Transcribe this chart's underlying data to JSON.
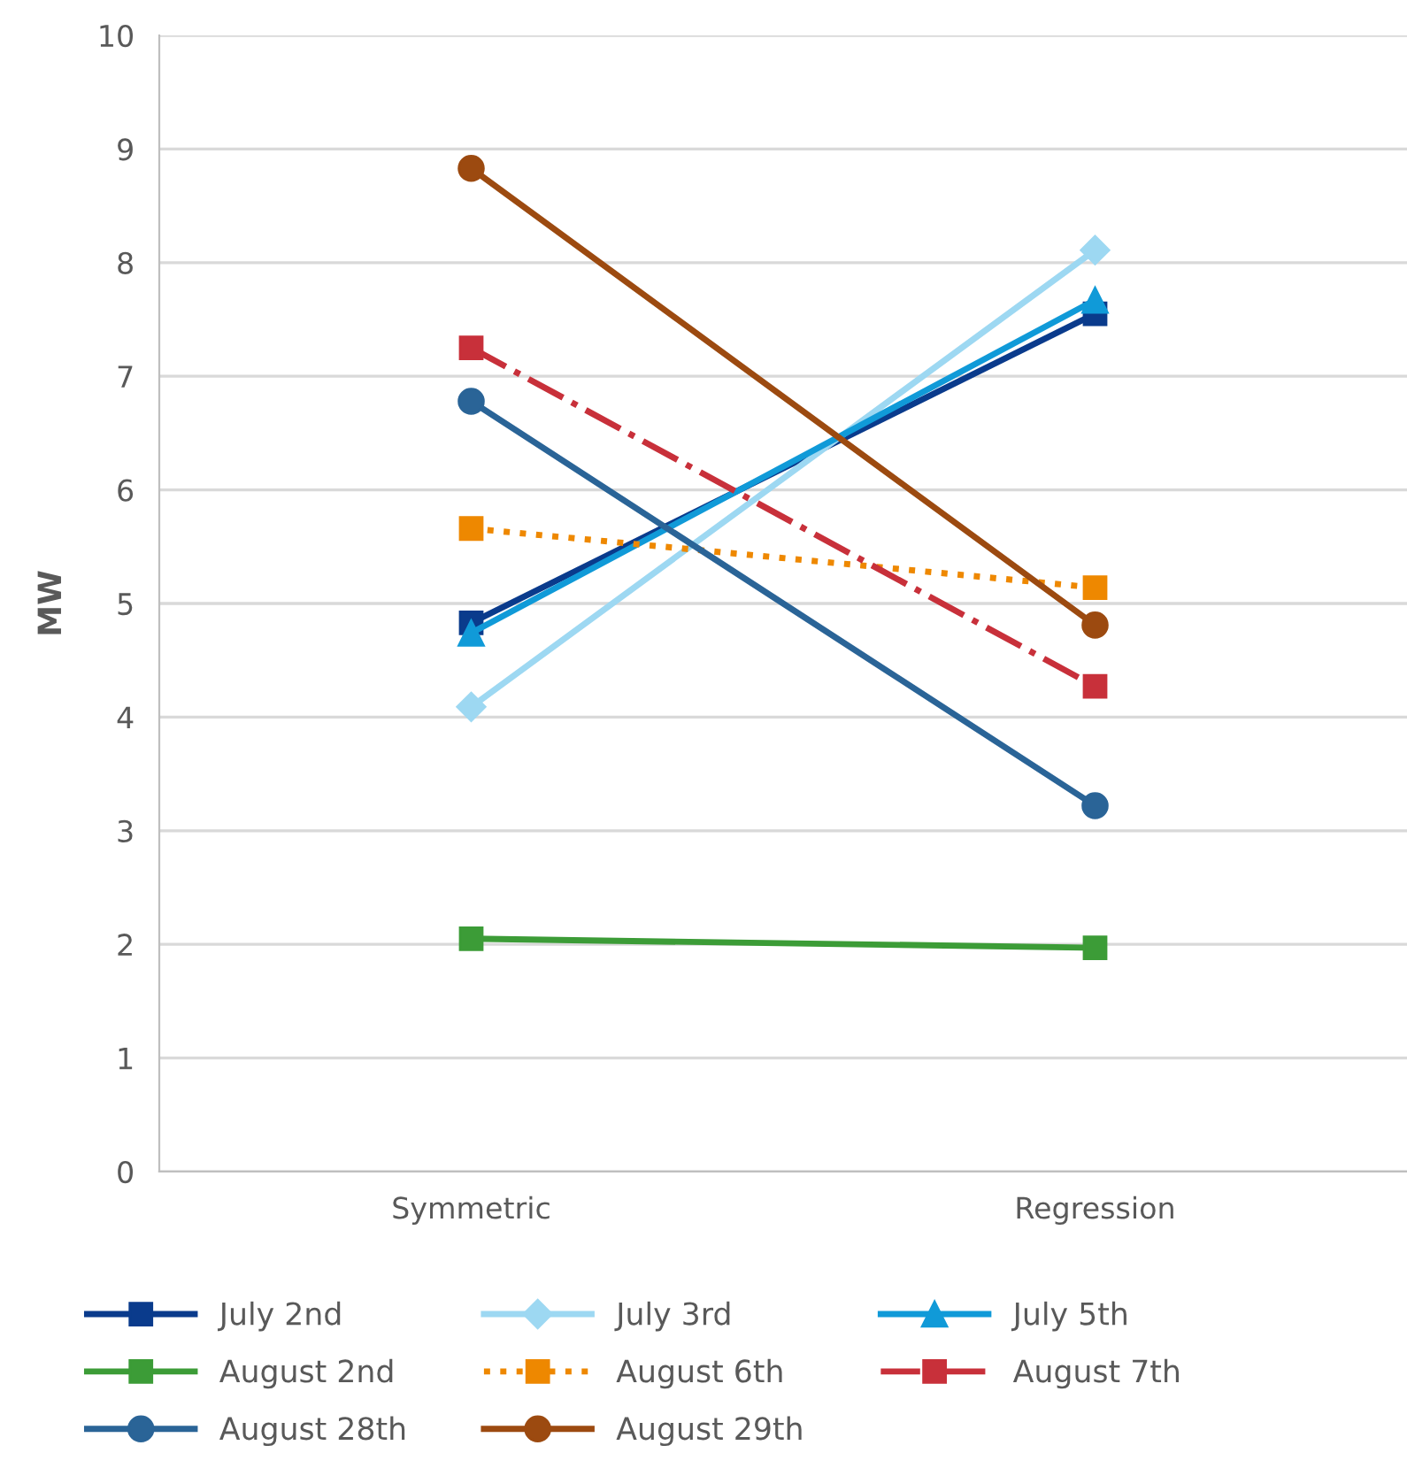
{
  "chart_data": {
    "type": "line",
    "ylabel": "MW",
    "categories": [
      "Symmetric",
      "Regression"
    ],
    "ylim": [
      0,
      10
    ],
    "yticks": [
      0,
      1,
      2,
      3,
      4,
      5,
      6,
      7,
      8,
      9,
      10
    ],
    "grid": "y",
    "legend": "bottom",
    "series": [
      {
        "name": "July 2nd",
        "color": "#0a3b8c",
        "values": [
          4.83,
          7.55
        ],
        "marker": "square",
        "line_style": "solid"
      },
      {
        "name": "July 3rd",
        "color": "#9dd8f2",
        "values": [
          4.09,
          8.11
        ],
        "marker": "diamond",
        "line_style": "solid"
      },
      {
        "name": "July 5th",
        "color": "#109ad8",
        "values": [
          4.74,
          7.67
        ],
        "marker": "triangle",
        "line_style": "solid"
      },
      {
        "name": "August 2nd",
        "color": "#3c9c37",
        "values": [
          2.05,
          1.97
        ],
        "marker": "square",
        "line_style": "solid"
      },
      {
        "name": "August 6th",
        "color": "#ee8800",
        "values": [
          5.66,
          5.14
        ],
        "marker": "square",
        "line_style": "dotted"
      },
      {
        "name": "August 7th",
        "color": "#c8303a",
        "values": [
          7.25,
          4.27
        ],
        "marker": "square",
        "line_style": "dashdot"
      },
      {
        "name": "August 28th",
        "color": "#2a6497",
        "values": [
          6.78,
          3.22
        ],
        "marker": "circle",
        "line_style": "solid"
      },
      {
        "name": "August 29th",
        "color": "#9c4a10",
        "values": [
          8.83,
          4.81
        ],
        "marker": "circle",
        "line_style": "solid"
      }
    ]
  }
}
